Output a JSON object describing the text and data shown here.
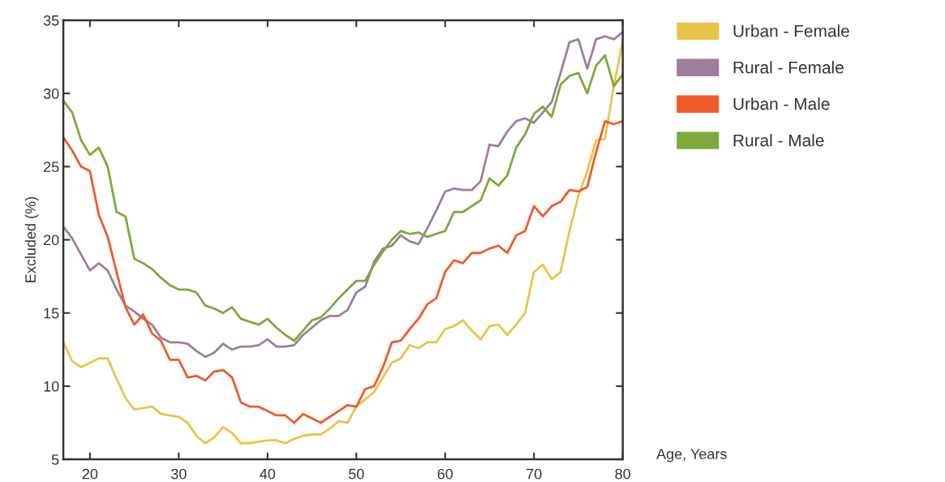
{
  "chart_data": {
    "type": "line",
    "xlabel": "Age, Years",
    "ylabel": "Excluded (%)",
    "x": [
      17,
      18,
      19,
      20,
      21,
      22,
      23,
      24,
      25,
      26,
      27,
      28,
      29,
      30,
      31,
      32,
      33,
      34,
      35,
      36,
      37,
      38,
      39,
      40,
      41,
      42,
      43,
      44,
      45,
      46,
      47,
      48,
      49,
      50,
      51,
      52,
      53,
      54,
      55,
      56,
      57,
      58,
      59,
      60,
      61,
      62,
      63,
      64,
      65,
      66,
      67,
      68,
      69,
      70,
      71,
      72,
      73,
      74,
      75,
      76,
      77,
      78,
      79,
      80
    ],
    "series": [
      {
        "name": "Urban - Female",
        "color": "#e8c547",
        "values": [
          13.0,
          11.7,
          11.3,
          11.6,
          11.9,
          11.9,
          10.5,
          9.2,
          8.4,
          8.5,
          8.6,
          8.1,
          8.0,
          7.9,
          7.5,
          6.6,
          6.1,
          6.5,
          7.2,
          6.8,
          6.1,
          6.1,
          6.2,
          6.3,
          6.3,
          6.1,
          6.4,
          6.6,
          6.7,
          6.7,
          7.1,
          7.6,
          7.5,
          8.6,
          9.1,
          9.6,
          10.6,
          11.6,
          11.9,
          12.8,
          12.6,
          13.0,
          13.0,
          13.9,
          14.1,
          14.5,
          13.8,
          13.2,
          14.1,
          14.2,
          13.5,
          14.2,
          15.0,
          17.8,
          18.3,
          17.3,
          17.8,
          20.6,
          23.0,
          24.7,
          26.8,
          26.9,
          30.5,
          33.6
        ]
      },
      {
        "name": "Rural - Female",
        "color": "#9c7f9a",
        "values": [
          20.9,
          20.1,
          19.0,
          17.9,
          18.4,
          17.9,
          16.6,
          15.5,
          15.1,
          14.6,
          14.2,
          13.3,
          13.0,
          13.0,
          12.9,
          12.4,
          12.0,
          12.3,
          12.9,
          12.5,
          12.7,
          12.7,
          12.8,
          13.2,
          12.7,
          12.7,
          12.8,
          13.5,
          14.0,
          14.5,
          14.8,
          14.8,
          15.2,
          16.4,
          16.8,
          18.5,
          19.4,
          19.6,
          20.3,
          19.9,
          19.7,
          20.8,
          22.0,
          23.3,
          23.5,
          23.4,
          23.4,
          24.0,
          26.5,
          26.4,
          27.4,
          28.1,
          28.3,
          28.0,
          28.7,
          29.4,
          31.4,
          33.5,
          33.7,
          31.7,
          33.7,
          33.9,
          33.7,
          34.2
        ]
      },
      {
        "name": "Urban - Male",
        "color": "#f15a29",
        "values": [
          27.0,
          26.1,
          25.0,
          24.7,
          21.7,
          20.2,
          17.8,
          15.4,
          14.2,
          14.9,
          13.6,
          13.1,
          11.8,
          11.8,
          10.6,
          10.7,
          10.4,
          11.0,
          11.1,
          10.6,
          8.9,
          8.6,
          8.6,
          8.3,
          8.0,
          8.0,
          7.5,
          8.1,
          7.8,
          7.5,
          7.9,
          8.3,
          8.7,
          8.6,
          9.8,
          10.0,
          11.3,
          13.0,
          13.1,
          13.9,
          14.6,
          15.6,
          16.0,
          17.8,
          18.6,
          18.4,
          19.1,
          19.1,
          19.4,
          19.6,
          19.1,
          20.3,
          20.6,
          22.3,
          21.6,
          22.3,
          22.6,
          23.4,
          23.3,
          23.6,
          26.0,
          28.1,
          27.9,
          28.1
        ]
      },
      {
        "name": "Rural - Male",
        "color": "#7fa83a",
        "values": [
          29.5,
          28.7,
          26.8,
          25.8,
          26.3,
          25.0,
          21.9,
          21.6,
          18.7,
          18.4,
          18.0,
          17.4,
          16.9,
          16.6,
          16.6,
          16.4,
          15.5,
          15.3,
          15.0,
          15.4,
          14.6,
          14.4,
          14.2,
          14.6,
          14.0,
          13.5,
          13.1,
          13.8,
          14.5,
          14.7,
          15.3,
          16.0,
          16.6,
          17.2,
          17.2,
          18.3,
          19.2,
          20.0,
          20.6,
          20.4,
          20.5,
          20.2,
          20.4,
          20.6,
          21.9,
          21.9,
          22.3,
          22.7,
          24.2,
          23.7,
          24.4,
          26.3,
          27.2,
          28.6,
          29.1,
          28.4,
          30.6,
          31.2,
          31.4,
          30.0,
          31.9,
          32.6,
          30.5,
          31.3
        ]
      }
    ],
    "xlim": [
      17,
      80
    ],
    "xticks": [
      20,
      30,
      40,
      50,
      60,
      70,
      80
    ],
    "ylim": [
      5,
      35
    ],
    "yticks": [
      5,
      10,
      15,
      20,
      25,
      30,
      35
    ],
    "grid": false,
    "legend": "top right",
    "marker": "none",
    "line_style": "solid"
  }
}
